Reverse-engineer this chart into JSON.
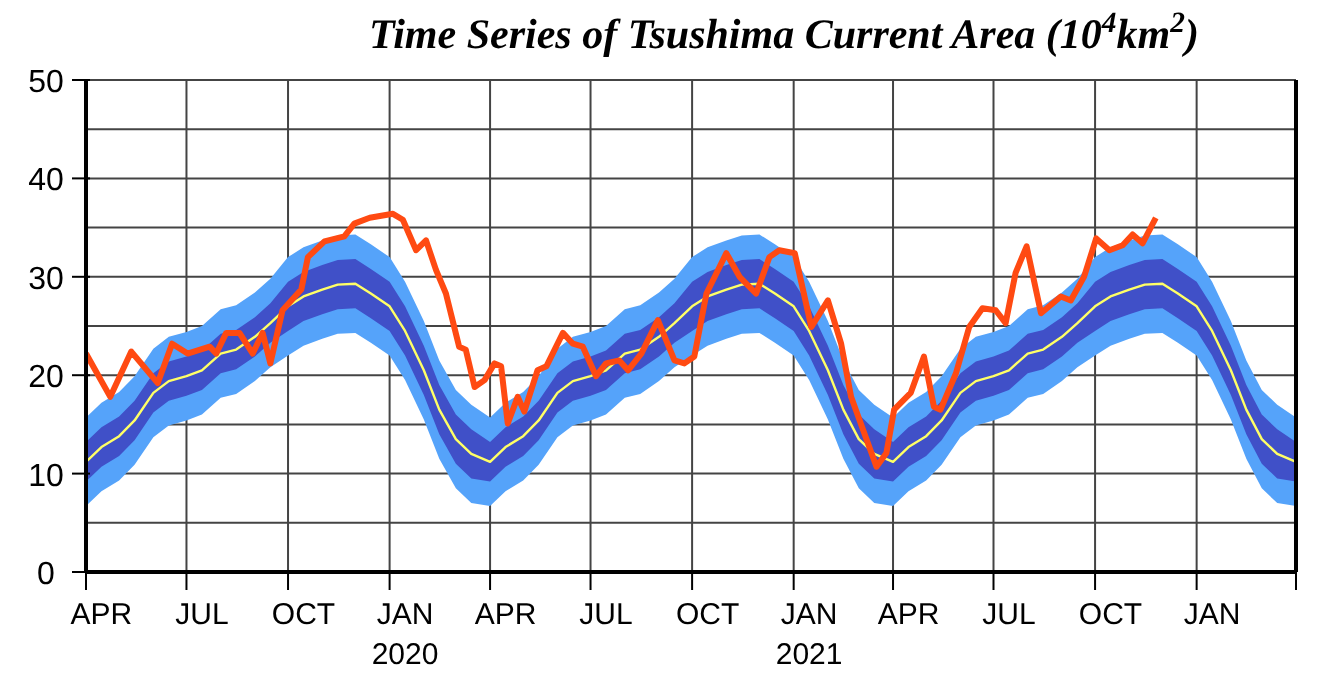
{
  "chart_data": {
    "type": "line",
    "title": "Time Series of Tsushima Current Area (10$^{4}$km$^{2}$)",
    "xlim": [
      "2019-04-01",
      "2022-04-01"
    ],
    "xticks": [
      {
        "value": "2019-04-01",
        "label": null
      },
      {
        "value": "2019-04-15",
        "label": "APR"
      },
      {
        "value": "2019-07-01",
        "label": null
      },
      {
        "value": "2019-07-15",
        "label": "JUL"
      },
      {
        "value": "2019-10-01",
        "label": null
      },
      {
        "value": "2019-10-15",
        "label": "OCT"
      },
      {
        "value": "2020-01-01",
        "label": null
      },
      {
        "value": "2020-01-15",
        "label": "JAN\n2020"
      },
      {
        "value": "2020-04-01",
        "label": null
      },
      {
        "value": "2020-04-15",
        "label": "APR"
      },
      {
        "value": "2020-07-01",
        "label": null
      },
      {
        "value": "2020-07-15",
        "label": "JUL"
      },
      {
        "value": "2020-10-01",
        "label": null
      },
      {
        "value": "2020-10-15",
        "label": "OCT"
      },
      {
        "value": "2021-01-01",
        "label": null
      },
      {
        "value": "2021-01-15",
        "label": "JAN\n2021"
      },
      {
        "value": "2021-04-01",
        "label": null
      },
      {
        "value": "2021-04-15",
        "label": "APR"
      },
      {
        "value": "2021-07-01",
        "label": null
      },
      {
        "value": "2021-07-15",
        "label": "JUL"
      },
      {
        "value": "2021-10-01",
        "label": null
      },
      {
        "value": "2021-10-15",
        "label": "OCT"
      },
      {
        "value": "2022-01-01",
        "label": null
      },
      {
        "value": "2022-01-15",
        "label": "JAN"
      },
      {
        "value": "2022-04-01",
        "label": null
      }
    ],
    "ylim": [
      0,
      50
    ],
    "yticks": [
      0,
      {
        "value": 5,
        "label": null
      },
      10,
      {
        "value": 15,
        "label": null
      },
      20,
      {
        "value": 25,
        "label": null
      },
      30,
      {
        "value": 35,
        "label": null
      },
      40,
      {
        "value": 45,
        "label": null
      },
      50
    ],
    "grid": true,
    "series": [
      {
        "type": "line",
        "color": "#55a3fa",
        "x": [
          "2019-04-01",
          "2019-04-15",
          "2019-05-01",
          "2019-05-15",
          "2019-06-01",
          "2019-06-15",
          "2019-07-01",
          "2019-07-15",
          "2019-08-01",
          "2019-08-15",
          "2019-09-01",
          "2019-09-15",
          "2019-10-01",
          "2019-10-15",
          "2019-11-01",
          "2019-11-15",
          "2019-12-01",
          "2019-12-15",
          "2020-01-01",
          "2020-01-15",
          "2020-02-01",
          "2020-02-15",
          "2020-03-01",
          "2020-03-15",
          "2020-04-01",
          "2020-04-15",
          "2020-05-01",
          "2020-05-15",
          "2020-06-01",
          "2020-06-15",
          "2020-07-01",
          "2020-07-15",
          "2020-08-01",
          "2020-08-15",
          "2020-09-01",
          "2020-09-15",
          "2020-10-01",
          "2020-10-15",
          "2020-11-01",
          "2020-11-15",
          "2020-12-01",
          "2020-12-15",
          "2021-01-01",
          "2021-01-15",
          "2021-02-01",
          "2021-02-15",
          "2021-03-01",
          "2021-03-15",
          "2021-04-01",
          "2021-04-15",
          "2021-05-01",
          "2021-05-15",
          "2021-06-01",
          "2021-06-15",
          "2021-07-01",
          "2021-07-15",
          "2021-08-01",
          "2021-08-15",
          "2021-09-01",
          "2021-09-15",
          "2021-10-01",
          "2021-10-15",
          "2021-11-01",
          "2021-11-15",
          "2021-12-01",
          "2021-12-15",
          "2022-01-01",
          "2022-01-15",
          "2022-02-01",
          "2022-02-15",
          "2022-03-01",
          "2022-03-15",
          "2022-04-01"
        ],
        "lower": [
          6.7,
          8.2,
          9.3,
          10.9,
          13.7,
          14.9,
          15.4,
          16.0,
          17.7,
          18.1,
          19.4,
          20.8,
          22.0,
          23.0,
          23.7,
          24.2,
          24.3,
          23.3,
          22.0,
          19.5,
          15.5,
          11.5,
          8.5,
          7.0,
          6.7,
          8.2,
          9.3,
          10.9,
          13.7,
          14.9,
          15.4,
          16.0,
          17.7,
          18.1,
          19.4,
          20.8,
          22.0,
          23.0,
          23.7,
          24.2,
          24.3,
          23.3,
          22.0,
          19.5,
          15.5,
          11.5,
          8.5,
          7.0,
          6.7,
          8.2,
          9.3,
          10.9,
          13.7,
          14.9,
          15.4,
          16.0,
          17.7,
          18.1,
          19.4,
          20.8,
          22.0,
          23.0,
          23.7,
          24.2,
          24.3,
          23.3,
          22.0,
          19.5,
          15.5,
          11.5,
          8.5,
          7.0,
          6.7
        ],
        "values": [
          null,
          null,
          null,
          null,
          null,
          null,
          null,
          null,
          null,
          null,
          null,
          null,
          null,
          null,
          null,
          null,
          null,
          null,
          null,
          null,
          null,
          null,
          null,
          null,
          null,
          null,
          null,
          null,
          null,
          null,
          null,
          null,
          null,
          null,
          null,
          null,
          null,
          null,
          null,
          null,
          null,
          null,
          null,
          null,
          null,
          null,
          null,
          null,
          null,
          null,
          null,
          null,
          null,
          null,
          null,
          null,
          null,
          null,
          null,
          null,
          null,
          null,
          null,
          null,
          null,
          null,
          null,
          null,
          null,
          null,
          null,
          null,
          null
        ],
        "upper": [
          15.7,
          17.2,
          18.3,
          19.9,
          22.7,
          23.9,
          24.4,
          25.0,
          26.7,
          27.1,
          28.4,
          29.8,
          32.0,
          33.0,
          33.7,
          34.2,
          34.3,
          33.3,
          32.0,
          29.5,
          25.5,
          21.5,
          18.5,
          17.0,
          15.7,
          17.2,
          18.3,
          19.9,
          22.7,
          23.9,
          24.4,
          25.0,
          26.7,
          27.1,
          28.4,
          29.8,
          32.0,
          33.0,
          33.7,
          34.2,
          34.3,
          33.3,
          32.0,
          29.5,
          25.5,
          21.5,
          18.5,
          17.0,
          15.7,
          17.2,
          18.3,
          19.9,
          22.7,
          23.9,
          24.4,
          25.0,
          26.7,
          27.1,
          28.4,
          29.8,
          32.0,
          33.0,
          33.7,
          34.2,
          34.3,
          33.3,
          32.0,
          29.5,
          25.5,
          21.5,
          18.5,
          17.0,
          15.7
        ]
      },
      {
        "type": "line",
        "color": "#4050c8",
        "x": [
          "2019-04-01",
          "2019-04-15",
          "2019-05-01",
          "2019-05-15",
          "2019-06-01",
          "2019-06-15",
          "2019-07-01",
          "2019-07-15",
          "2019-08-01",
          "2019-08-15",
          "2019-09-01",
          "2019-09-15",
          "2019-10-01",
          "2019-10-15",
          "2019-11-01",
          "2019-11-15",
          "2019-12-01",
          "2019-12-15",
          "2020-01-01",
          "2020-01-15",
          "2020-02-01",
          "2020-02-15",
          "2020-03-01",
          "2020-03-15",
          "2020-04-01",
          "2020-04-15",
          "2020-05-01",
          "2020-05-15",
          "2020-06-01",
          "2020-06-15",
          "2020-07-01",
          "2020-07-15",
          "2020-08-01",
          "2020-08-15",
          "2020-09-01",
          "2020-09-15",
          "2020-10-01",
          "2020-10-15",
          "2020-11-01",
          "2020-11-15",
          "2020-12-01",
          "2020-12-15",
          "2021-01-01",
          "2021-01-15",
          "2021-02-01",
          "2021-02-15",
          "2021-03-01",
          "2021-03-15",
          "2021-04-01",
          "2021-04-15",
          "2021-05-01",
          "2021-05-15",
          "2021-06-01",
          "2021-06-15",
          "2021-07-01",
          "2021-07-15",
          "2021-08-01",
          "2021-08-15",
          "2021-09-01",
          "2021-09-15",
          "2021-10-01",
          "2021-10-15",
          "2021-11-01",
          "2021-11-15",
          "2021-12-01",
          "2021-12-15",
          "2022-01-01",
          "2022-01-15",
          "2022-02-01",
          "2022-02-15",
          "2022-03-01",
          "2022-03-15",
          "2022-04-01"
        ],
        "lower": [
          9.2,
          10.7,
          11.8,
          13.4,
          16.2,
          17.4,
          17.9,
          18.5,
          20.2,
          20.6,
          21.9,
          23.3,
          24.5,
          25.5,
          26.2,
          26.7,
          26.8,
          25.8,
          24.5,
          22.0,
          18.0,
          14.0,
          11.0,
          9.5,
          9.2,
          10.7,
          11.8,
          13.4,
          16.2,
          17.4,
          17.9,
          18.5,
          20.2,
          20.6,
          21.9,
          23.3,
          24.5,
          25.5,
          26.2,
          26.7,
          26.8,
          25.8,
          24.5,
          22.0,
          18.0,
          14.0,
          11.0,
          9.5,
          9.2,
          10.7,
          11.8,
          13.4,
          16.2,
          17.4,
          17.9,
          18.5,
          20.2,
          20.6,
          21.9,
          23.3,
          24.5,
          25.5,
          26.2,
          26.7,
          26.8,
          25.8,
          24.5,
          22.0,
          18.0,
          14.0,
          11.0,
          9.5,
          9.2
        ],
        "values": [
          null,
          null,
          null,
          null,
          null,
          null,
          null,
          null,
          null,
          null,
          null,
          null,
          null,
          null,
          null,
          null,
          null,
          null,
          null,
          null,
          null,
          null,
          null,
          null,
          null,
          null,
          null,
          null,
          null,
          null,
          null,
          null,
          null,
          null,
          null,
          null,
          null,
          null,
          null,
          null,
          null,
          null,
          null,
          null,
          null,
          null,
          null,
          null,
          null,
          null,
          null,
          null,
          null,
          null,
          null,
          null,
          null,
          null,
          null,
          null,
          null,
          null,
          null,
          null,
          null,
          null,
          null,
          null,
          null,
          null,
          null,
          null,
          null
        ],
        "upper": [
          13.2,
          14.7,
          15.8,
          17.4,
          20.2,
          21.4,
          21.9,
          22.5,
          24.2,
          24.6,
          25.9,
          27.3,
          29.5,
          30.5,
          31.2,
          31.7,
          31.8,
          30.8,
          29.5,
          27.0,
          23.0,
          19.0,
          16.0,
          14.5,
          13.2,
          14.7,
          15.8,
          17.4,
          20.2,
          21.4,
          21.9,
          22.5,
          24.2,
          24.6,
          25.9,
          27.3,
          29.5,
          30.5,
          31.2,
          31.7,
          31.8,
          30.8,
          29.5,
          27.0,
          23.0,
          19.0,
          16.0,
          14.5,
          13.2,
          14.7,
          15.8,
          17.4,
          20.2,
          21.4,
          21.9,
          22.5,
          24.2,
          24.6,
          25.9,
          27.3,
          29.5,
          30.5,
          31.2,
          31.7,
          31.8,
          30.8,
          29.5,
          27.0,
          23.0,
          19.0,
          16.0,
          14.5,
          13.2
        ]
      },
      {
        "type": "line",
        "color": "#ffff66",
        "x": [
          "2019-04-01",
          "2019-04-15",
          "2019-05-01",
          "2019-05-15",
          "2019-06-01",
          "2019-06-15",
          "2019-07-01",
          "2019-07-15",
          "2019-08-01",
          "2019-08-15",
          "2019-09-01",
          "2019-09-15",
          "2019-10-01",
          "2019-10-15",
          "2019-11-01",
          "2019-11-15",
          "2019-12-01",
          "2019-12-15",
          "2020-01-01",
          "2020-01-15",
          "2020-02-01",
          "2020-02-15",
          "2020-03-01",
          "2020-03-15",
          "2020-04-01",
          "2020-04-15",
          "2020-05-01",
          "2020-05-15",
          "2020-06-01",
          "2020-06-15",
          "2020-07-01",
          "2020-07-15",
          "2020-08-01",
          "2020-08-15",
          "2020-09-01",
          "2020-09-15",
          "2020-10-01",
          "2020-10-15",
          "2020-11-01",
          "2020-11-15",
          "2020-12-01",
          "2020-12-15",
          "2021-01-01",
          "2021-01-15",
          "2021-02-01",
          "2021-02-15",
          "2021-03-01",
          "2021-03-15",
          "2021-04-01",
          "2021-04-15",
          "2021-05-01",
          "2021-05-15",
          "2021-06-01",
          "2021-06-15",
          "2021-07-01",
          "2021-07-15",
          "2021-08-01",
          "2021-08-15",
          "2021-09-01",
          "2021-09-15",
          "2021-10-01",
          "2021-10-15",
          "2021-11-01",
          "2021-11-15",
          "2021-12-01",
          "2021-12-15",
          "2022-01-01",
          "2022-01-15",
          "2022-02-01",
          "2022-02-15",
          "2022-03-01",
          "2022-03-15",
          "2022-04-01"
        ],
        "values": [
          11.2,
          12.7,
          13.8,
          15.4,
          18.2,
          19.4,
          19.9,
          20.5,
          22.2,
          22.6,
          23.9,
          25.3,
          27.0,
          28.0,
          28.7,
          29.2,
          29.3,
          28.3,
          27.0,
          24.5,
          20.5,
          16.5,
          13.5,
          12.0,
          11.2,
          12.7,
          13.8,
          15.4,
          18.2,
          19.4,
          19.9,
          20.5,
          22.2,
          22.6,
          23.9,
          25.3,
          27.0,
          28.0,
          28.7,
          29.2,
          29.3,
          28.3,
          27.0,
          24.5,
          20.5,
          16.5,
          13.5,
          12.0,
          11.2,
          12.7,
          13.8,
          15.4,
          18.2,
          19.4,
          19.9,
          20.5,
          22.2,
          22.6,
          23.9,
          25.3,
          27.0,
          28.0,
          28.7,
          29.2,
          29.3,
          28.3,
          27.0,
          24.5,
          20.5,
          16.5,
          13.5,
          12.0,
          11.2
        ]
      },
      {
        "type": "line",
        "color": "#ff4a12",
        "x": [
          "2019-04-01",
          "2019-04-23",
          "2019-05-12",
          "2019-06-05",
          "2019-06-18",
          "2019-07-02",
          "2019-07-22",
          "2019-07-28",
          "2019-08-06",
          "2019-08-18",
          "2019-08-30",
          "2019-09-08",
          "2019-09-15",
          "2019-09-26",
          "2019-10-13",
          "2019-10-19",
          "2019-11-03",
          "2019-11-21",
          "2019-11-30",
          "2019-12-14",
          "2020-01-04",
          "2020-01-13",
          "2020-01-25",
          "2020-02-03",
          "2020-02-12",
          "2020-02-21",
          "2020-03-04",
          "2020-03-10",
          "2020-03-18",
          "2020-03-27",
          "2020-04-05",
          "2020-04-11",
          "2020-04-17",
          "2020-04-26",
          "2020-05-02",
          "2020-05-14",
          "2020-05-22",
          "2020-06-06",
          "2020-06-15",
          "2020-06-24",
          "2020-07-06",
          "2020-07-15",
          "2020-07-27",
          "2020-08-04",
          "2020-08-16",
          "2020-08-31",
          "2020-09-15",
          "2020-09-24",
          "2020-10-03",
          "2020-10-14",
          "2020-11-01",
          "2020-11-13",
          "2020-11-28",
          "2020-12-10",
          "2020-12-19",
          "2021-01-02",
          "2021-01-17",
          "2021-02-01",
          "2021-02-13",
          "2021-02-22",
          "2021-03-05",
          "2021-03-17",
          "2021-03-26",
          "2021-04-02",
          "2021-04-17",
          "2021-04-29",
          "2021-05-08",
          "2021-05-14",
          "2021-05-28",
          "2021-06-09",
          "2021-06-21",
          "2021-07-03",
          "2021-07-12",
          "2021-07-21",
          "2021-07-31",
          "2021-08-13",
          "2021-08-31",
          "2021-09-09",
          "2021-09-21",
          "2021-10-02",
          "2021-10-14",
          "2021-10-26",
          "2021-11-04",
          "2021-11-13",
          "2021-11-25"
        ],
        "values": [
          22.2,
          17.8,
          22.4,
          19.2,
          23.2,
          22.2,
          22.9,
          22.2,
          24.3,
          24.3,
          22.2,
          24.3,
          21.2,
          26.6,
          28.7,
          32.0,
          33.6,
          34.1,
          35.4,
          36.0,
          36.4,
          35.8,
          32.7,
          33.7,
          30.7,
          28.3,
          22.9,
          22.6,
          18.8,
          19.5,
          21.2,
          20.9,
          15.1,
          17.8,
          16.3,
          20.5,
          20.9,
          24.3,
          23.2,
          22.9,
          19.9,
          21.2,
          21.5,
          20.5,
          22.2,
          25.6,
          21.5,
          21.2,
          21.9,
          28.3,
          32.4,
          30.0,
          28.3,
          32.0,
          32.7,
          32.4,
          24.9,
          27.6,
          23.2,
          17.8,
          14.4,
          10.7,
          12.1,
          16.5,
          18.2,
          21.9,
          16.8,
          16.5,
          20.2,
          24.9,
          26.8,
          26.6,
          25.3,
          30.4,
          33.1,
          26.3,
          28.0,
          27.6,
          30.0,
          33.9,
          32.7,
          33.2,
          34.3,
          33.4,
          36.0
        ]
      }
    ]
  }
}
